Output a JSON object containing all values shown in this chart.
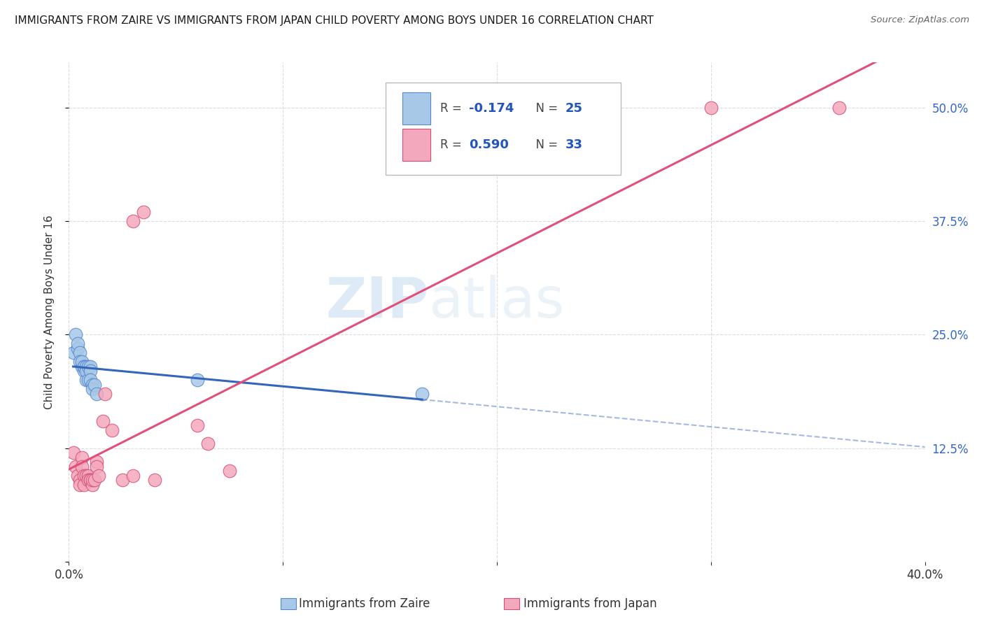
{
  "title": "IMMIGRANTS FROM ZAIRE VS IMMIGRANTS FROM JAPAN CHILD POVERTY AMONG BOYS UNDER 16 CORRELATION CHART",
  "source": "Source: ZipAtlas.com",
  "ylabel": "Child Poverty Among Boys Under 16",
  "xlim": [
    0.0,
    0.4
  ],
  "ylim": [
    0.0,
    0.55
  ],
  "xticks": [
    0.0,
    0.1,
    0.2,
    0.3,
    0.4
  ],
  "xticklabels": [
    "0.0%",
    "",
    "",
    "",
    "40.0%"
  ],
  "yticks": [
    0.0,
    0.125,
    0.25,
    0.375,
    0.5
  ],
  "yticklabels_right": [
    "",
    "12.5%",
    "25.0%",
    "37.5%",
    "50.0%"
  ],
  "zaire_color": "#a8c8e8",
  "japan_color": "#f4a8be",
  "zaire_edge": "#5588cc",
  "japan_edge": "#d45070",
  "line_zaire_color": "#3366bb",
  "line_japan_color": "#e0507a",
  "watermark_zip": "ZIP",
  "watermark_atlas": "atlas",
  "background_color": "#ffffff",
  "grid_color": "#cccccc",
  "zaire_x": [
    0.002,
    0.003,
    0.004,
    0.004,
    0.005,
    0.005,
    0.006,
    0.006,
    0.007,
    0.007,
    0.007,
    0.008,
    0.008,
    0.008,
    0.009,
    0.009,
    0.01,
    0.01,
    0.01,
    0.011,
    0.011,
    0.012,
    0.013,
    0.06,
    0.165
  ],
  "zaire_y": [
    0.23,
    0.25,
    0.235,
    0.24,
    0.23,
    0.22,
    0.215,
    0.22,
    0.215,
    0.21,
    0.215,
    0.2,
    0.215,
    0.21,
    0.2,
    0.215,
    0.215,
    0.21,
    0.2,
    0.195,
    0.19,
    0.195,
    0.185,
    0.2,
    0.185
  ],
  "japan_x": [
    0.002,
    0.003,
    0.004,
    0.005,
    0.005,
    0.006,
    0.006,
    0.007,
    0.007,
    0.008,
    0.009,
    0.009,
    0.01,
    0.01,
    0.011,
    0.011,
    0.012,
    0.013,
    0.013,
    0.014,
    0.016,
    0.017,
    0.02,
    0.025,
    0.03,
    0.03,
    0.035,
    0.04,
    0.06,
    0.065,
    0.075,
    0.3,
    0.36
  ],
  "japan_y": [
    0.12,
    0.105,
    0.095,
    0.09,
    0.085,
    0.115,
    0.105,
    0.095,
    0.085,
    0.095,
    0.095,
    0.09,
    0.09,
    0.09,
    0.085,
    0.09,
    0.09,
    0.11,
    0.105,
    0.095,
    0.155,
    0.185,
    0.145,
    0.09,
    0.095,
    0.375,
    0.385,
    0.09,
    0.15,
    0.13,
    0.1,
    0.5,
    0.5
  ]
}
